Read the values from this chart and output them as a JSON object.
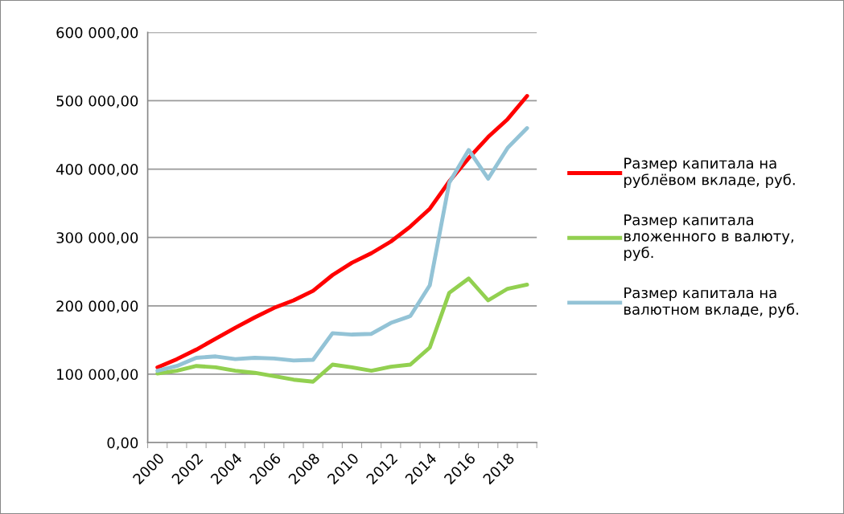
{
  "chart_data": {
    "type": "line",
    "categories": [
      "2000",
      null,
      "2002",
      null,
      "2004",
      null,
      "2006",
      null,
      "2008",
      null,
      "2010",
      null,
      "2012",
      null,
      "2014",
      null,
      "2016",
      null,
      "2018",
      null
    ],
    "series": [
      {
        "name": "Размер капитала на\nрублёвом вкладе, руб.",
        "color": "#ff0000",
        "values": [
          110000,
          122000,
          136000,
          152000,
          168000,
          183000,
          197000,
          208000,
          222000,
          245000,
          263000,
          277000,
          294000,
          316000,
          342000,
          382000,
          416000,
          447000,
          473000,
          507000
        ]
      },
      {
        "name": "Размер капитала\nвложенного в валюту,\nруб.",
        "color": "#92d050",
        "values": [
          101000,
          105000,
          112000,
          110000,
          105000,
          102000,
          97000,
          92000,
          89000,
          114000,
          110000,
          105000,
          111000,
          114000,
          139000,
          219000,
          240000,
          208000,
          225000,
          231000
        ]
      },
      {
        "name": "Размер капитала на\nвалютном вкладе, руб.",
        "color": "#93c3d6",
        "values": [
          105000,
          112000,
          124000,
          126000,
          122000,
          124000,
          123000,
          120000,
          121000,
          160000,
          158000,
          159000,
          175000,
          185000,
          230000,
          380000,
          428000,
          386000,
          431000,
          460000
        ]
      }
    ],
    "ylim": [
      0,
      600000
    ],
    "yticks": [
      {
        "value": 0,
        "label": "0,00"
      },
      {
        "value": 100000,
        "label": "100 000,00"
      },
      {
        "value": 200000,
        "label": "200 000,00"
      },
      {
        "value": 300000,
        "label": "300 000,00"
      },
      {
        "value": 400000,
        "label": "400 000,00"
      },
      {
        "value": 500000,
        "label": "500 000,00"
      },
      {
        "value": 600000,
        "label": "600 000,00"
      }
    ],
    "grid": "y",
    "legend": "right",
    "marker": "none",
    "line_style": "solid"
  }
}
